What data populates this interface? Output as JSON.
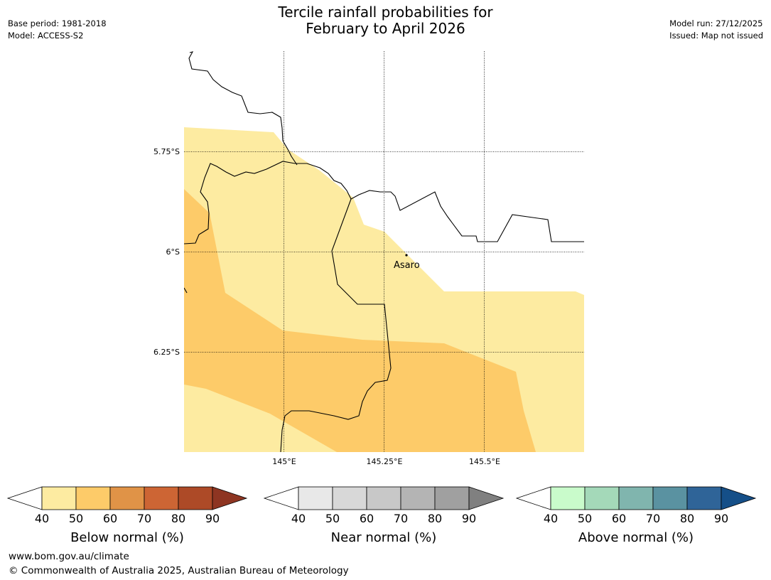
{
  "header": {
    "title_line1": "Tercile rainfall probabilities for",
    "title_line2": "February to April 2026",
    "base_period": "Base period: 1981-2018",
    "model": "Model: ACCESS-S2",
    "model_run": "Model run: 27/12/2025",
    "issued": "Issued: Map not issued"
  },
  "map": {
    "place_label": "Asaro",
    "lat_labels": [
      "5.75°S",
      "6°S",
      "6.25°S"
    ],
    "lon_labels": [
      "145°E",
      "145.25°E",
      "145.5°E"
    ],
    "colors": {
      "prob_40_50": "#fdeba1",
      "prob_50_60": "#fdcb69",
      "border": "#000000"
    }
  },
  "legends": [
    {
      "name": "below",
      "title": "Below normal (%)",
      "ticks": [
        "40",
        "50",
        "60",
        "70",
        "80",
        "90"
      ],
      "colors": [
        "#fdeba1",
        "#fdcb69",
        "#e09347",
        "#cd6534",
        "#ad4a27",
        "#8e3522"
      ]
    },
    {
      "name": "near",
      "title": "Near normal (%)",
      "ticks": [
        "40",
        "50",
        "60",
        "70",
        "80",
        "90"
      ],
      "colors": [
        "#e8e8e8",
        "#d8d8d8",
        "#c8c8c8",
        "#b4b4b4",
        "#a0a0a0",
        "#808080"
      ]
    },
    {
      "name": "above",
      "title": "Above normal (%)",
      "ticks": [
        "40",
        "50",
        "60",
        "70",
        "80",
        "90"
      ],
      "colors": [
        "#c9fbcb",
        "#a4d9b9",
        "#80b5ae",
        "#5a92a1",
        "#2f6498",
        "#154f88"
      ]
    }
  ],
  "footer": {
    "url": "www.bom.gov.au/climate",
    "copyright": "© Commonwealth of Australia 2025, Australian Bureau of Meteorology"
  }
}
